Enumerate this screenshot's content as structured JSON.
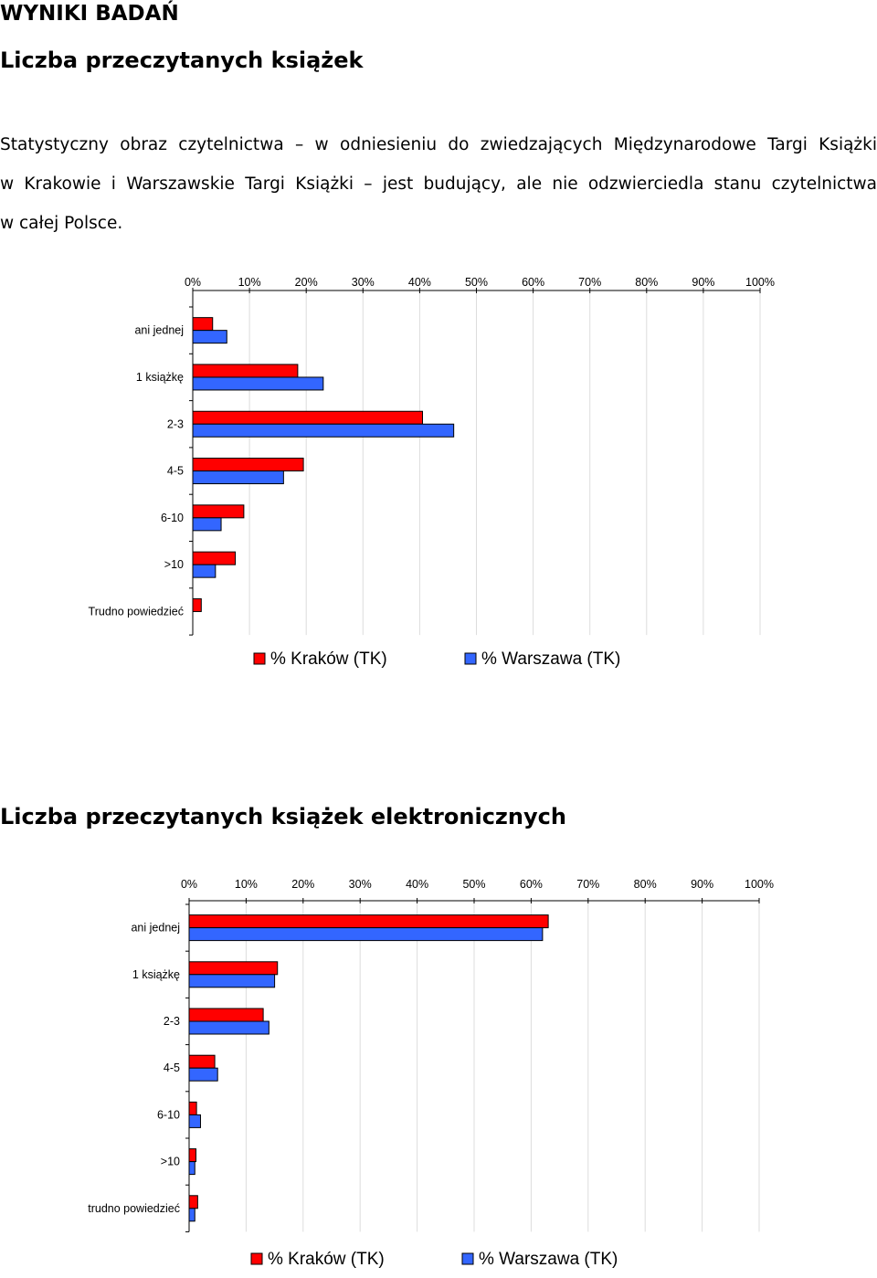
{
  "document": {
    "section_title": "WYNIKI BADAŃ",
    "chart1_heading": "Liczba przeczytanych książek",
    "intro_lines": [
      "Statystyczny obraz czytelnictwa – w odniesieniu do zwiedzających Międzynarodowe Targi Książki",
      "w Krakowie i Warszawskie Targi Książki – jest budujący, ale nie odzwierciedla stanu czytelnictwa",
      "w całej Polsce."
    ],
    "chart2_heading": "Liczba przeczytanych książek elektronicznych"
  },
  "colors": {
    "krakow": "#ff0000",
    "warszawa": "#3366ff",
    "gridline": "#dddddd",
    "axis": "#000000"
  },
  "chart_data": [
    {
      "type": "bar",
      "orientation": "horizontal",
      "x_tick_labels": [
        "0%",
        "10%",
        "20%",
        "30%",
        "40%",
        "50%",
        "60%",
        "70%",
        "80%",
        "90%",
        "100%"
      ],
      "xlim": [
        0,
        100
      ],
      "x_axis_position": "top",
      "grid": true,
      "legend_position": "bottom",
      "categories": [
        "ani jednej",
        "1 książkę",
        "2-3",
        "4-5",
        "6-10",
        ">10",
        "Trudno powiedzieć"
      ],
      "series": [
        {
          "name": "% Kraków (TK)",
          "color": "#ff0000",
          "values": [
            3.5,
            18.5,
            40.5,
            19.5,
            9,
            7.5,
            1.5
          ]
        },
        {
          "name": "% Warszawa (TK)",
          "color": "#3366ff",
          "values": [
            6,
            23,
            46,
            16,
            5,
            4,
            0
          ]
        }
      ]
    },
    {
      "type": "bar",
      "orientation": "horizontal",
      "x_tick_labels": [
        "0%",
        "10%",
        "20%",
        "30%",
        "40%",
        "50%",
        "60%",
        "70%",
        "80%",
        "90%",
        "100%"
      ],
      "xlim": [
        0,
        100
      ],
      "x_axis_position": "top",
      "grid": true,
      "legend_position": "bottom",
      "categories": [
        "ani jednej",
        "1 książkę",
        "2-3",
        "4-5",
        "6-10",
        ">10",
        "trudno powiedzieć"
      ],
      "series": [
        {
          "name": "% Kraków (TK)",
          "color": "#ff0000",
          "values": [
            63,
            15.5,
            13,
            4.5,
            1.3,
            1.2,
            1.5
          ]
        },
        {
          "name": "% Warszawa (TK)",
          "color": "#3366ff",
          "values": [
            62,
            15,
            14,
            5,
            2,
            1,
            1
          ]
        }
      ]
    }
  ]
}
